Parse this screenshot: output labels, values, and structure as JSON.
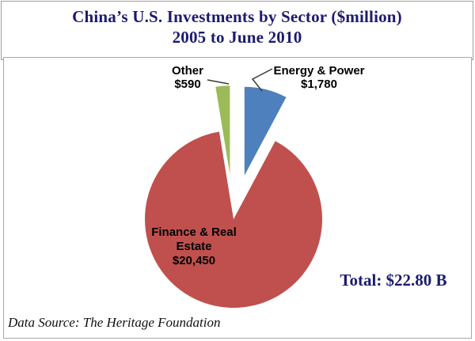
{
  "title": {
    "line1": "China’s U.S. Investments by Sector ($million)",
    "line2": "2005 to June 2010"
  },
  "chart_data": {
    "type": "pie",
    "title": "China’s U.S. Investments by Sector ($million) 2005 to June 2010",
    "unit": "$million",
    "start_angle_deg": 0,
    "direction": "clockwise",
    "legend": "none",
    "slices": [
      {
        "label": "Energy & Power",
        "value": 1780,
        "value_label": "$1,780",
        "color": "#4d80bc",
        "exploded": true
      },
      {
        "label": "Finance & Real Estate",
        "label_lines": [
          "Finance & Real",
          "Estate"
        ],
        "value": 20450,
        "value_label": "$20,450",
        "color": "#c0504d",
        "exploded": false
      },
      {
        "label": "Other",
        "value": 590,
        "value_label": "$590",
        "color": "#9bbb59",
        "exploded": true
      }
    ],
    "total_label": "Total: $22.80 B",
    "total_value_billion": 22.8,
    "source": "Data Source: The Heritage Foundation"
  },
  "colors": {
    "title_text": "#1b1b71",
    "label_text": "#000000",
    "box_border": "#a8a8a8",
    "background": "#ffffff",
    "leader_line": "#3a3a3a"
  }
}
